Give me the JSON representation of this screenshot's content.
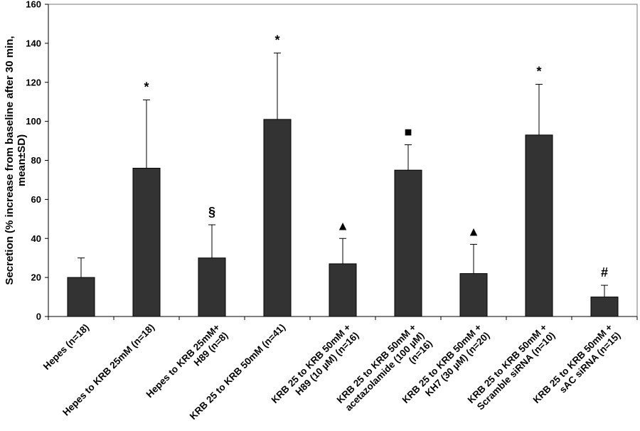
{
  "chart_data": {
    "type": "bar",
    "ylabel_lines": [
      "Secretion (% increase from baseline after 30 min,",
      "mean±SD)"
    ],
    "ylim": [
      0,
      160
    ],
    "yticks": [
      0,
      20,
      40,
      60,
      80,
      100,
      120,
      140,
      160
    ],
    "grid": false,
    "legend": "none",
    "bar_color": "#333333",
    "categories": [
      {
        "lines": [
          "Hepes (n=18)"
        ]
      },
      {
        "lines": [
          "Hepes to KRB 25mM (n=18)"
        ]
      },
      {
        "lines": [
          "Hepes to KRB 25mM+",
          "H89 (n=8)"
        ]
      },
      {
        "lines": [
          "KRB 25 to KRB 50mM (n=41)"
        ]
      },
      {
        "lines": [
          "KRB 25 to KRB 50mM +",
          "H89 (10 µM) (n=16)"
        ]
      },
      {
        "lines": [
          "KRB 25 to KRB 50mM +",
          "acetazolamide (100 µM)",
          "(n=16)"
        ]
      },
      {
        "lines": [
          "KRB 25 to KRB 50mM +",
          "KH7 (30 µM) (n=20)"
        ]
      },
      {
        "lines": [
          "KRB 25 to KRB 50mM +",
          "Scramble siRNA (n=10)"
        ]
      },
      {
        "lines": [
          "KRB 25 to KRB 50mM +",
          "sAC siRNA (n=15)"
        ]
      }
    ],
    "values": [
      20,
      76,
      30,
      101,
      27,
      75,
      22,
      93,
      10
    ],
    "errors": [
      10,
      35,
      17,
      34,
      13,
      13,
      15,
      26,
      6
    ],
    "annotations": [
      "",
      "*",
      "§",
      "*",
      "▲",
      "■",
      "▲",
      "*",
      "#"
    ]
  }
}
